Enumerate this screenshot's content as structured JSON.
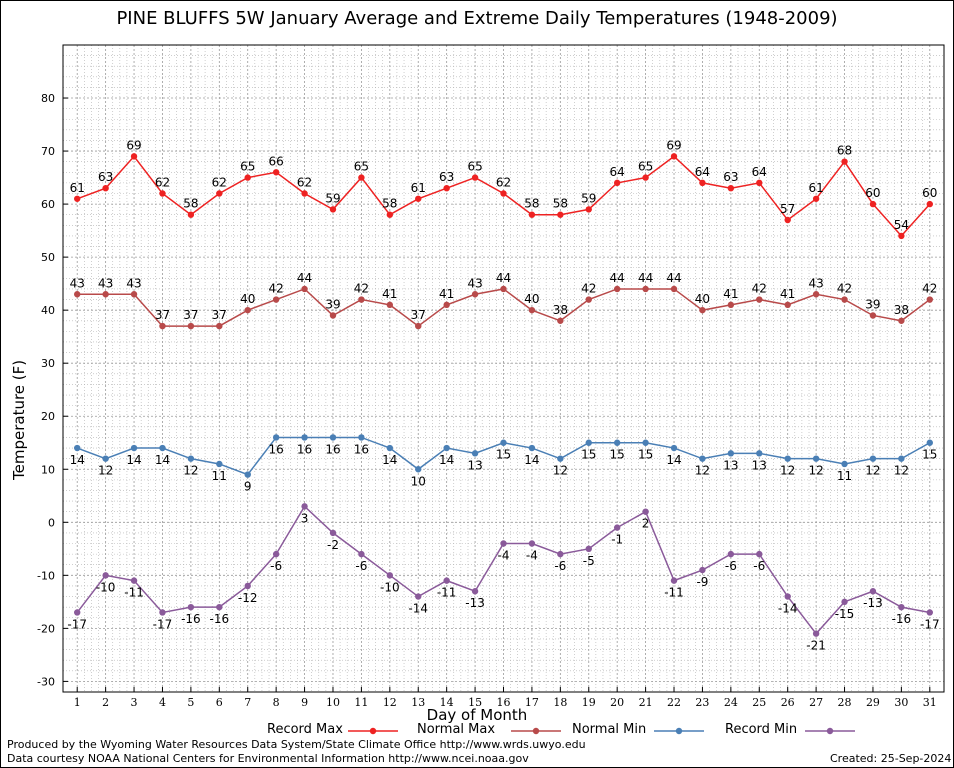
{
  "chart_data": {
    "type": "line",
    "title": "PINE BLUFFS 5W January Average and Extreme Daily Temperatures (1948-2009)",
    "xlabel": "Day of Month",
    "ylabel": "Temperature (F)",
    "x": [
      1,
      2,
      3,
      4,
      5,
      6,
      7,
      8,
      9,
      10,
      11,
      12,
      13,
      14,
      15,
      16,
      17,
      18,
      19,
      20,
      21,
      22,
      23,
      24,
      25,
      26,
      27,
      28,
      29,
      30,
      31
    ],
    "xlim": [
      0.5,
      31.5
    ],
    "ylim": [
      -32,
      90
    ],
    "yticks": [
      -30,
      -20,
      -10,
      0,
      10,
      20,
      30,
      40,
      50,
      60,
      70,
      80
    ],
    "grid": true,
    "legend_placement": "bottom",
    "series": [
      {
        "name": "Record Max",
        "color": "#ee2222",
        "values": [
          61,
          63,
          69,
          62,
          58,
          62,
          65,
          66,
          62,
          59,
          65,
          58,
          61,
          63,
          65,
          62,
          58,
          58,
          59,
          64,
          65,
          69,
          64,
          63,
          64,
          57,
          61,
          68,
          60,
          54,
          60
        ]
      },
      {
        "name": "Normal Max",
        "color": "#b84a4a",
        "values": [
          43,
          43,
          43,
          37,
          37,
          37,
          40,
          42,
          44,
          39,
          42,
          41,
          37,
          41,
          43,
          44,
          40,
          38,
          42,
          44,
          44,
          44,
          40,
          41,
          42,
          41,
          43,
          42,
          39,
          38,
          42
        ]
      },
      {
        "name": "Normal Min",
        "color": "#4a7fb5",
        "values": [
          14,
          12,
          14,
          14,
          12,
          11,
          9,
          16,
          16,
          16,
          16,
          14,
          10,
          14,
          13,
          15,
          14,
          12,
          15,
          15,
          15,
          14,
          12,
          13,
          13,
          12,
          12,
          11,
          12,
          12,
          15
        ]
      },
      {
        "name": "Record Min",
        "color": "#8a5a9a",
        "values": [
          -17,
          -10,
          -11,
          -17,
          -16,
          -16,
          -12,
          -6,
          3,
          -2,
          -6,
          -10,
          -14,
          -11,
          -13,
          -4,
          -4,
          -6,
          -5,
          -1,
          2,
          -11,
          -9,
          -6,
          -6,
          -14,
          -21,
          -15,
          -13,
          -16,
          -17
        ]
      }
    ]
  },
  "footer": {
    "line1": "Produced by the Wyoming Water Resources Data System/State Climate Office http://www.wrds.uwyo.edu",
    "line2": "Data courtesy NOAA National Centers for Environmental Information http://www.ncei.noaa.gov",
    "created": "Created:  25-Sep-2024"
  }
}
